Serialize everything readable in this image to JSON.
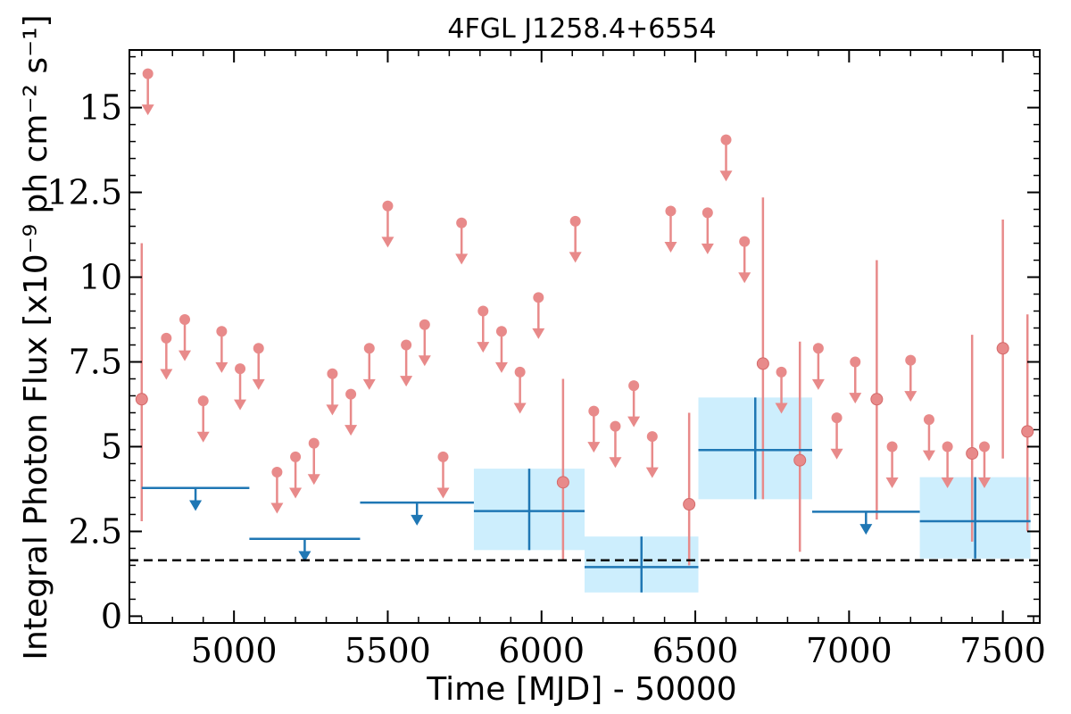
{
  "chart_data": {
    "type": "scatter",
    "title": "4FGL J1258.4+6554",
    "xlabel": "Time [MJD] - 50000",
    "ylabel": "Integral Photon Flux [x10⁻⁹ ph cm⁻² s⁻¹]",
    "xlim": [
      4660,
      7620
    ],
    "ylim": [
      -0.2,
      16.7
    ],
    "x_ticks": [
      "5000",
      "5500",
      "6000",
      "6500",
      "7000",
      "7500"
    ],
    "y_ticks": [
      "0",
      "2.5",
      "5",
      "7.5",
      "10",
      "12.5",
      "15"
    ],
    "reference_level": 1.65,
    "colors": {
      "fine_bins": "#e88a8a",
      "coarse_bins": "#1f77b4",
      "coarse_band": "#cdeefd",
      "reference_line": "#000000"
    },
    "series": [
      {
        "style": "fine-bin upper limits",
        "x": [
          4720,
          4780,
          4840,
          4900,
          4960,
          5020,
          5080,
          5140,
          5200,
          5260,
          5320,
          5380,
          5440,
          5500,
          5560,
          5620,
          5680,
          5740,
          5810,
          5870,
          5930,
          5990,
          6110,
          6170,
          6240,
          6300,
          6360,
          6420,
          6540,
          6600,
          6660,
          6780,
          6900,
          6960,
          7020,
          7140,
          7200,
          7260,
          7320,
          7440
        ],
        "y": [
          16.0,
          8.2,
          8.75,
          6.35,
          8.4,
          7.3,
          7.9,
          4.25,
          4.7,
          5.1,
          7.15,
          6.55,
          7.9,
          12.1,
          8.0,
          8.6,
          4.7,
          11.6,
          9.0,
          8.4,
          7.2,
          9.4,
          11.65,
          6.05,
          5.6,
          6.8,
          5.3,
          11.95,
          11.9,
          14.05,
          11.05,
          7.2,
          7.9,
          5.85,
          7.5,
          5.0,
          7.55,
          5.8,
          5.0,
          5.0
        ]
      },
      {
        "style": "fine-bin detections",
        "x": [
          4700,
          6070,
          6480,
          6720,
          6840,
          7090,
          7400,
          7500,
          7580
        ],
        "y": [
          6.4,
          3.95,
          3.3,
          7.45,
          4.6,
          6.4,
          4.8,
          7.9,
          5.45
        ],
        "yerr_low": [
          2.8,
          1.65,
          1.5,
          3.45,
          1.9,
          2.85,
          2.2,
          4.65,
          2.5
        ],
        "yerr_high": [
          11.0,
          7.0,
          6.0,
          12.35,
          8.1,
          10.5,
          8.3,
          11.7,
          8.9
        ]
      },
      {
        "style": "coarse-bin upper limits",
        "x_start": [
          4700,
          5050,
          5410,
          6880
        ],
        "x_end": [
          5050,
          5410,
          5780,
          7230
        ],
        "y": [
          3.78,
          2.28,
          3.35,
          3.08
        ]
      },
      {
        "style": "coarse-bin detections",
        "x_start": [
          5780,
          6140,
          6510,
          7230
        ],
        "x_end": [
          6140,
          6510,
          6880,
          7590
        ],
        "y": [
          3.1,
          1.45,
          4.9,
          2.8
        ],
        "yerr_low": [
          1.95,
          0.7,
          3.45,
          1.7
        ],
        "yerr_high": [
          4.35,
          2.35,
          6.45,
          4.1
        ]
      }
    ]
  }
}
